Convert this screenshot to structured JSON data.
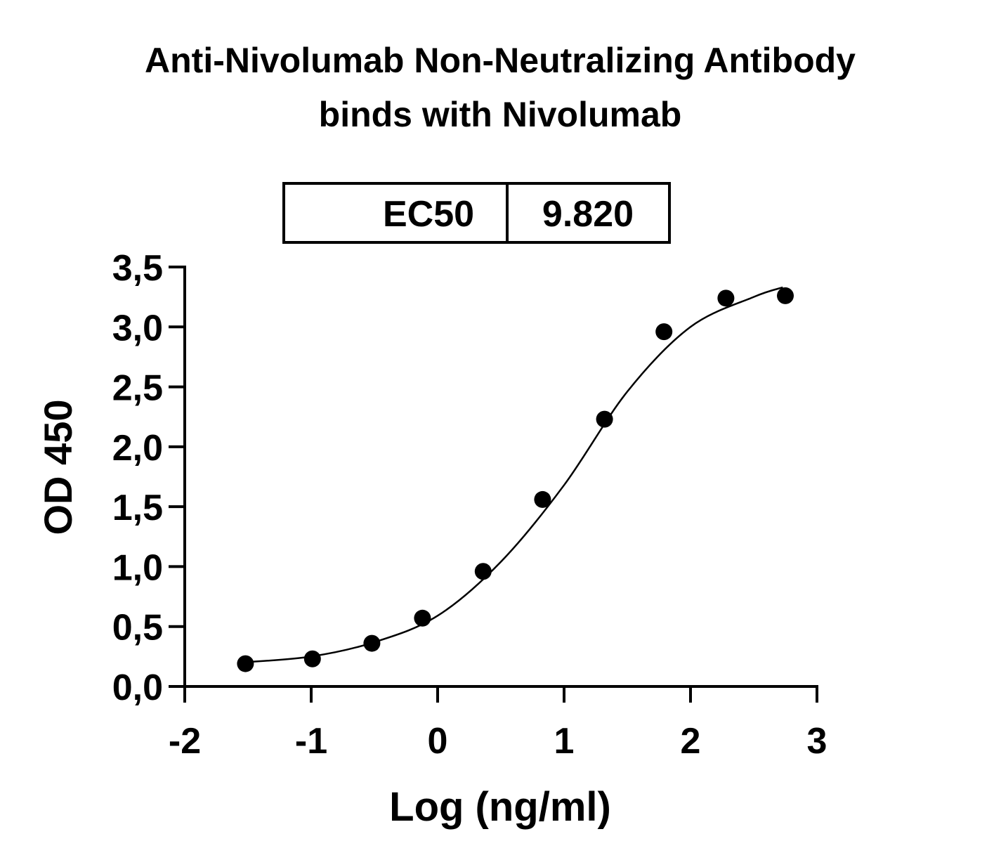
{
  "chart_data": {
    "type": "scatter",
    "title": [
      "Anti-Nivolumab Non-Neutralizing Antibody",
      "binds with Nivolumab"
    ],
    "ec50_table": {
      "label": "EC50",
      "value": "9.820"
    },
    "x_label": "Log (ng/ml)",
    "y_label": "OD 450",
    "x": [
      -1.52,
      -0.99,
      -0.52,
      -0.12,
      0.36,
      0.83,
      1.32,
      1.79,
      2.28,
      2.75
    ],
    "values": [
      0.19,
      0.23,
      0.36,
      0.57,
      0.96,
      1.56,
      2.23,
      2.96,
      3.24,
      3.26
    ],
    "color": "#000000",
    "curve": {
      "x": [
        -1.55,
        -1,
        -0.5,
        0,
        0.5,
        1,
        1.5,
        2,
        2.5,
        2.73
      ],
      "values": [
        0.2,
        0.25,
        0.37,
        0.59,
        1.04,
        1.68,
        2.46,
        3.0,
        3.25,
        3.33
      ]
    },
    "xlim": [
      -2,
      3
    ],
    "xticks": [
      -2,
      -1,
      0,
      1,
      2,
      3
    ],
    "ylim": [
      0,
      3.5
    ],
    "yticks": [
      {
        "value": 0,
        "label": "0,0"
      },
      {
        "value": 0.5,
        "label": "0,5"
      },
      {
        "value": 1,
        "label": "1,0"
      },
      {
        "value": 1.5,
        "label": "1,5"
      },
      {
        "value": 2,
        "label": "2,0"
      },
      {
        "value": 2.5,
        "label": "2,5"
      },
      {
        "value": 3,
        "label": "3,0"
      },
      {
        "value": 3.5,
        "label": "3,5"
      }
    ]
  }
}
